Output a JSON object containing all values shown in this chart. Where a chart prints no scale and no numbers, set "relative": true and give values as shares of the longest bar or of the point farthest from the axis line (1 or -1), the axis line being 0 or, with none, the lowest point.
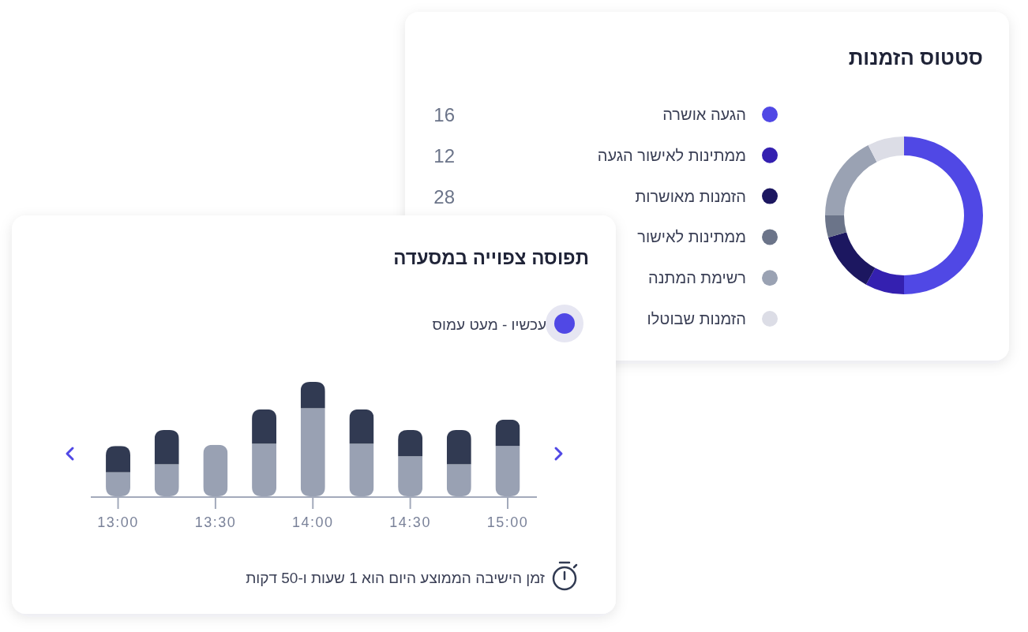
{
  "chart_data": [
    {
      "type": "donut",
      "title": "סטטוס הזמנות",
      "categories": [
        "הגעה אושרה",
        "ממתינות לאישור הגעה",
        "הזמנות מאושרות",
        "ממתינות לאישור",
        "רשימת המתנה",
        "הזמנות שבוטלו"
      ],
      "values": [
        50,
        8,
        12.5,
        4.5,
        17.5,
        7.5
      ],
      "colors": [
        "#5048e5",
        "#3420b0",
        "#1c1760",
        "#6b7489",
        "#9aa2b3",
        "#dcdde6"
      ],
      "annotations": [
        "16",
        "12",
        "28"
      ],
      "legend": "left"
    },
    {
      "type": "bar",
      "title": "תפוסה צפוייה במסעדה",
      "x": [
        13,
        13.25,
        13.5,
        13.75,
        14,
        14.25,
        14.5,
        14.75,
        15
      ],
      "xlim": [
        12.86,
        15.15
      ],
      "xticks": [
        {
          "value": 13,
          "label": "13:00"
        },
        {
          "value": 13.5,
          "label": "13:30"
        },
        {
          "value": 14,
          "label": "14:00"
        },
        {
          "value": 14.5,
          "label": "14:30"
        },
        {
          "value": 15,
          "label": "15:00"
        }
      ],
      "stacked": true,
      "relative": true,
      "series": [
        {
          "color": "#99a1b3",
          "values": [
            0.21,
            0.28,
            0.45,
            0.46,
            0.77,
            0.46,
            0.35,
            0.28,
            0.44
          ]
        },
        {
          "color": "#313a52",
          "values": [
            0.23,
            0.3,
            0,
            0.3,
            0.23,
            0.3,
            0.23,
            0.3,
            0.23
          ]
        }
      ],
      "annotations": [
        "עכשיו - מעט עמוס",
        "זמן הישיבה הממוצע היום הוא 1 שעות ו-50 דקות"
      ]
    }
  ]
}
